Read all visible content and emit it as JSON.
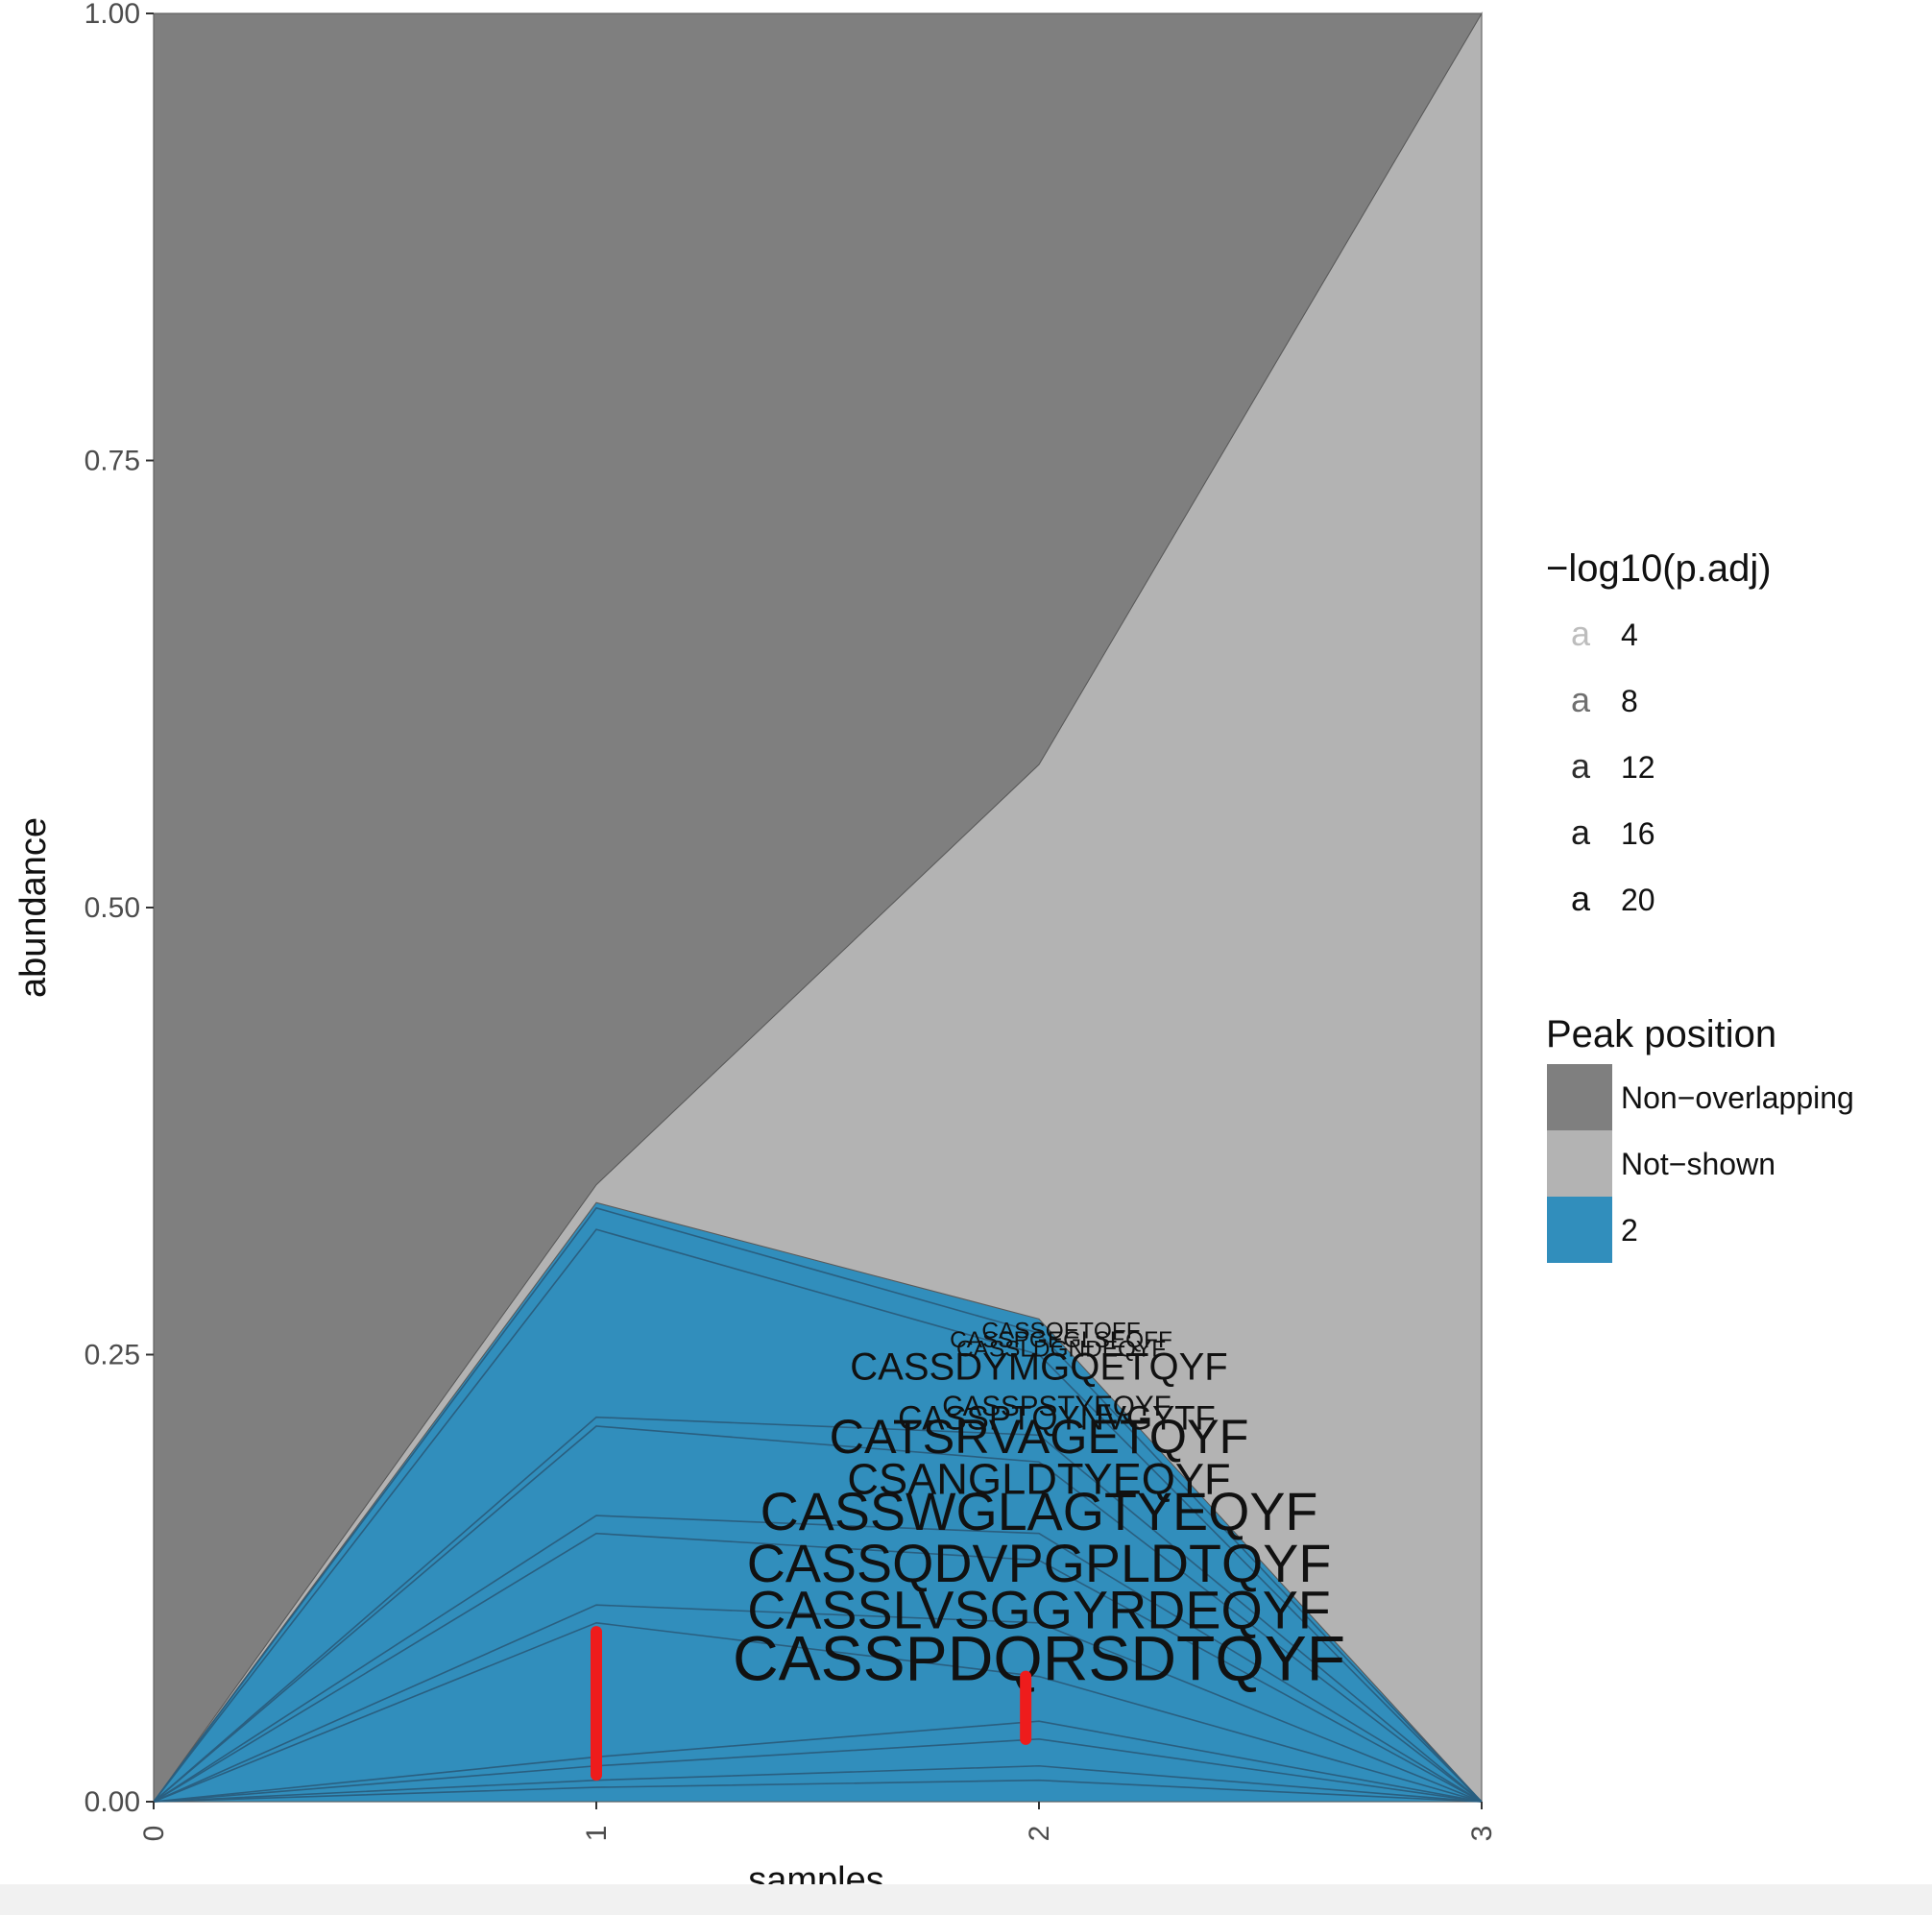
{
  "chart_data": {
    "type": "area",
    "xlabel": "samples",
    "ylabel": "abundance",
    "xlim": [
      0,
      3
    ],
    "ylim": [
      0,
      1
    ],
    "x_ticks": [
      "0",
      "1",
      "2",
      "3"
    ],
    "y_ticks": [
      "0.00",
      "0.25",
      "0.50",
      "0.75",
      "1.00"
    ],
    "x": [
      0,
      1,
      2,
      3
    ],
    "stack": [
      {
        "name": "2",
        "color": "#318ebc",
        "values": [
          0,
          0.335,
          0.27,
          0
        ]
      },
      {
        "name": "Not-shown",
        "color": "#b3b3b3",
        "values": [
          0,
          0.01,
          0.31,
          1.0
        ]
      },
      {
        "name": "Non-overlapping",
        "color": "#7f7f7f",
        "values": [
          1.0,
          0.655,
          0.42,
          0
        ]
      }
    ],
    "clone_lines": [
      [
        0,
        0.332,
        0.262,
        0
      ],
      [
        0,
        0.32,
        0.25,
        0
      ],
      [
        0,
        0.215,
        0.205,
        0
      ],
      [
        0,
        0.21,
        0.19,
        0
      ],
      [
        0,
        0.16,
        0.15,
        0
      ],
      [
        0,
        0.15,
        0.135,
        0
      ],
      [
        0,
        0.11,
        0.1,
        0
      ],
      [
        0,
        0.1,
        0.07,
        0
      ],
      [
        0,
        0.025,
        0.045,
        0
      ],
      [
        0,
        0.02,
        0.035,
        0
      ],
      [
        0,
        0.012,
        0.02,
        0
      ],
      [
        0,
        0.008,
        0.012,
        0
      ]
    ],
    "labels": [
      {
        "text": "CASSPDQRSDTQYF",
        "x": 2.0,
        "y": 0.068,
        "padj": 20
      },
      {
        "text": "CASSLVSGGYRDEQYF",
        "x": 2.0,
        "y": 0.097,
        "padj": 16
      },
      {
        "text": "CASSQDVPGPLDTQYF",
        "x": 2.0,
        "y": 0.123,
        "padj": 16
      },
      {
        "text": "CASSWGLAGTYEQYF",
        "x": 2.0,
        "y": 0.152,
        "padj": 16
      },
      {
        "text": "CSANGLDTYEQYF",
        "x": 2.0,
        "y": 0.172,
        "padj": 12
      },
      {
        "text": "CATSRVAGETQYF",
        "x": 2.0,
        "y": 0.195,
        "padj": 14
      },
      {
        "text": "CASSPTQYNVGYTF",
        "x": 2.04,
        "y": 0.208,
        "padj": 8
      },
      {
        "text": "CASSPSTYEQYF",
        "x": 2.04,
        "y": 0.216,
        "padj": 6
      },
      {
        "text": "CASSDYMGQETQYF",
        "x": 2.0,
        "y": 0.236,
        "padj": 10
      },
      {
        "text": "CASSLDGNDEQYF",
        "x": 2.05,
        "y": 0.249,
        "padj": 4
      },
      {
        "text": "CASSPGEGLSEQFF",
        "x": 2.05,
        "y": 0.254,
        "padj": 4
      },
      {
        "text": "CASSQETQFF",
        "x": 2.05,
        "y": 0.259,
        "padj": 4
      }
    ],
    "annotations": [
      {
        "kind": "hand-drawn red mark",
        "x": 1.0,
        "y_range": [
          0.015,
          0.095
        ]
      },
      {
        "kind": "hand-drawn red mark",
        "x": 1.97,
        "y_range": [
          0.035,
          0.07
        ]
      }
    ],
    "legend_size": {
      "title": "−log10(p.adj)",
      "glyph": "a",
      "entries": [
        "4",
        "8",
        "12",
        "16",
        "20"
      ],
      "shades": [
        "#bdbdbd",
        "#6f6f6f",
        "#2e2e2e",
        "#1a1a1a",
        "#111111"
      ]
    },
    "legend_fill": {
      "title": "Peak position",
      "entries": [
        {
          "label": "Non−overlapping",
          "color": "#7f7f7f"
        },
        {
          "label": "Not−shown",
          "color": "#b3b3b3"
        },
        {
          "label": "2",
          "color": "#318ebc"
        }
      ]
    },
    "grid": true,
    "legend_position": "right"
  }
}
